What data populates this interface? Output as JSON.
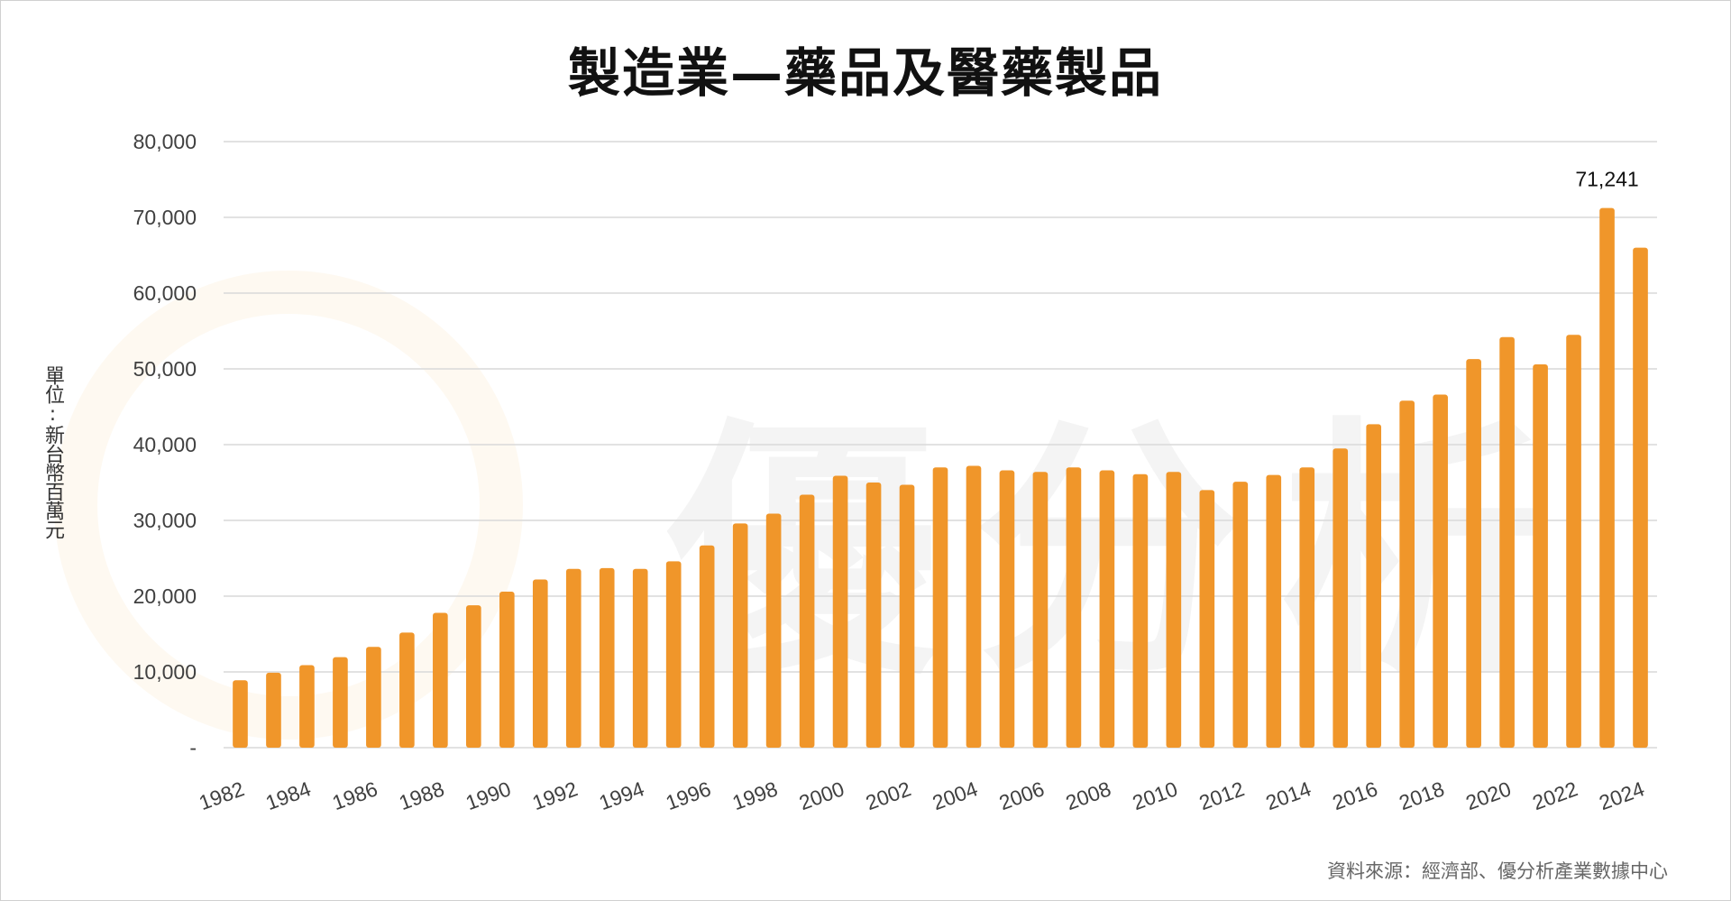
{
  "chart_data": {
    "type": "bar",
    "title": "製造業—藥品及醫藥製品",
    "ylabel": "單位:新台幣百萬元",
    "xlabel": "",
    "ylim": [
      0,
      80000
    ],
    "yticks": [
      "-",
      "10,000",
      "20,000",
      "30,000",
      "40,000",
      "50,000",
      "60,000",
      "70,000",
      "80,000"
    ],
    "ytick_values": [
      0,
      10000,
      20000,
      30000,
      40000,
      50000,
      60000,
      70000,
      80000
    ],
    "grid": true,
    "bar_color": "#F0962A",
    "categories": [
      "1982",
      "1983",
      "1984",
      "1985",
      "1986",
      "1987",
      "1988",
      "1989",
      "1990",
      "1991",
      "1992",
      "1993",
      "1994",
      "1995",
      "1996",
      "1997",
      "1998",
      "1999",
      "2000",
      "2001",
      "2002",
      "2003",
      "2004",
      "2005",
      "2006",
      "2007",
      "2008",
      "2009",
      "2010",
      "2011",
      "2012",
      "2013",
      "2014",
      "2015",
      "2016",
      "2017",
      "2018",
      "2019",
      "2020",
      "2021",
      "2022",
      "2023",
      "2024"
    ],
    "xtick_labels": [
      "1982",
      "1984",
      "1986",
      "1988",
      "1990",
      "1992",
      "1994",
      "1996",
      "1998",
      "2000",
      "2002",
      "2004",
      "2006",
      "2008",
      "2010",
      "2012",
      "2014",
      "2016",
      "2018",
      "2020",
      "2022",
      "2024"
    ],
    "values": [
      8900,
      9900,
      10900,
      11950,
      13300,
      15200,
      17800,
      18800,
      20600,
      22200,
      23600,
      23700,
      23600,
      24600,
      26700,
      29600,
      30900,
      33400,
      35900,
      35000,
      34700,
      37000,
      37200,
      36600,
      36400,
      37000,
      36600,
      36100,
      36400,
      34000,
      35100,
      36000,
      37000,
      39500,
      42700,
      45800,
      46600,
      51300,
      54200,
      50600,
      54500,
      71241,
      66000
    ],
    "annotations": [
      {
        "category": "2023",
        "label": "71,241"
      }
    ]
  },
  "source": "資料來源：經濟部、優分析產業數據中心",
  "watermark": "優分析"
}
